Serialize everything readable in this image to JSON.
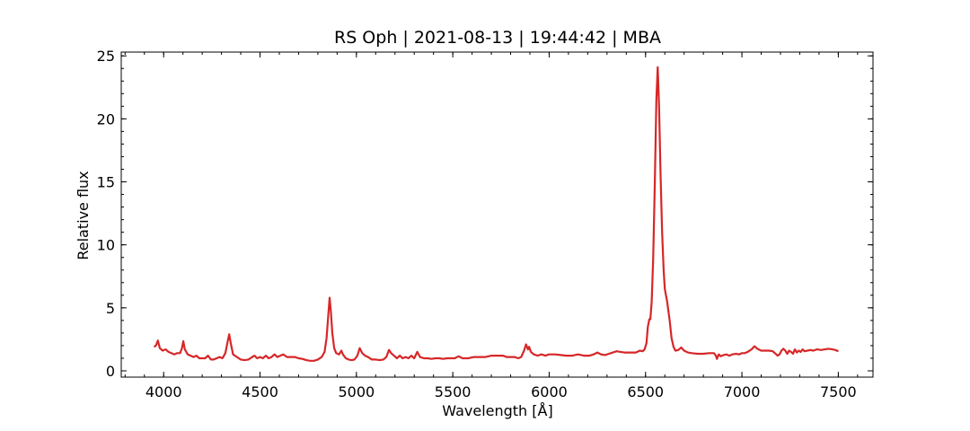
{
  "chart_data": {
    "type": "line",
    "title": "RS Oph | 2021-08-13 | 19:44:42 | MBA",
    "xlabel": "Wavelength [Å]",
    "ylabel": "Relative flux",
    "xlim": [
      3780,
      7680
    ],
    "ylim": [
      -0.5,
      25.3
    ],
    "xticks": [
      4000,
      4500,
      5000,
      5500,
      6000,
      6500,
      7000,
      7500
    ],
    "yticks": [
      0,
      5,
      10,
      15,
      20,
      25
    ],
    "x_minor_step": 100,
    "y_minor_step": 1,
    "grid": false,
    "legend": "none",
    "series": [
      {
        "color": "#d62728",
        "points": [
          [
            3950,
            1.9
          ],
          [
            3960,
            2.0
          ],
          [
            3970,
            2.4
          ],
          [
            3980,
            1.8
          ],
          [
            3995,
            1.6
          ],
          [
            4010,
            1.7
          ],
          [
            4025,
            1.5
          ],
          [
            4040,
            1.4
          ],
          [
            4055,
            1.3
          ],
          [
            4070,
            1.4
          ],
          [
            4085,
            1.4
          ],
          [
            4095,
            1.8
          ],
          [
            4102,
            2.35
          ],
          [
            4110,
            1.7
          ],
          [
            4125,
            1.3
          ],
          [
            4140,
            1.2
          ],
          [
            4155,
            1.1
          ],
          [
            4170,
            1.2
          ],
          [
            4185,
            1.0
          ],
          [
            4200,
            1.0
          ],
          [
            4215,
            1.0
          ],
          [
            4230,
            1.2
          ],
          [
            4245,
            0.9
          ],
          [
            4260,
            0.9
          ],
          [
            4275,
            1.0
          ],
          [
            4290,
            1.1
          ],
          [
            4305,
            1.0
          ],
          [
            4320,
            1.4
          ],
          [
            4333,
            2.4
          ],
          [
            4340,
            2.9
          ],
          [
            4348,
            2.2
          ],
          [
            4360,
            1.3
          ],
          [
            4380,
            1.1
          ],
          [
            4400,
            0.9
          ],
          [
            4420,
            0.85
          ],
          [
            4440,
            0.9
          ],
          [
            4460,
            1.1
          ],
          [
            4471,
            1.2
          ],
          [
            4485,
            1.0
          ],
          [
            4500,
            1.1
          ],
          [
            4515,
            1.0
          ],
          [
            4530,
            1.2
          ],
          [
            4545,
            1.0
          ],
          [
            4560,
            1.1
          ],
          [
            4575,
            1.3
          ],
          [
            4590,
            1.1
          ],
          [
            4605,
            1.2
          ],
          [
            4620,
            1.3
          ],
          [
            4640,
            1.1
          ],
          [
            4660,
            1.1
          ],
          [
            4680,
            1.1
          ],
          [
            4700,
            1.0
          ],
          [
            4720,
            0.95
          ],
          [
            4740,
            0.85
          ],
          [
            4760,
            0.8
          ],
          [
            4780,
            0.8
          ],
          [
            4800,
            0.9
          ],
          [
            4820,
            1.1
          ],
          [
            4835,
            1.5
          ],
          [
            4845,
            2.6
          ],
          [
            4855,
            4.6
          ],
          [
            4861,
            5.8
          ],
          [
            4867,
            4.8
          ],
          [
            4875,
            3.0
          ],
          [
            4885,
            1.8
          ],
          [
            4895,
            1.4
          ],
          [
            4910,
            1.3
          ],
          [
            4922,
            1.6
          ],
          [
            4930,
            1.3
          ],
          [
            4945,
            1.0
          ],
          [
            4960,
            0.9
          ],
          [
            4975,
            0.85
          ],
          [
            4990,
            0.9
          ],
          [
            5005,
            1.2
          ],
          [
            5017,
            1.8
          ],
          [
            5030,
            1.4
          ],
          [
            5045,
            1.2
          ],
          [
            5060,
            1.1
          ],
          [
            5080,
            0.9
          ],
          [
            5100,
            0.9
          ],
          [
            5120,
            0.85
          ],
          [
            5140,
            0.9
          ],
          [
            5155,
            1.1
          ],
          [
            5169,
            1.65
          ],
          [
            5180,
            1.4
          ],
          [
            5195,
            1.2
          ],
          [
            5210,
            1.0
          ],
          [
            5225,
            1.2
          ],
          [
            5240,
            1.0
          ],
          [
            5255,
            1.1
          ],
          [
            5270,
            1.0
          ],
          [
            5285,
            1.2
          ],
          [
            5300,
            1.0
          ],
          [
            5316,
            1.5
          ],
          [
            5330,
            1.1
          ],
          [
            5350,
            1.0
          ],
          [
            5370,
            1.0
          ],
          [
            5390,
            0.95
          ],
          [
            5410,
            1.0
          ],
          [
            5430,
            1.0
          ],
          [
            5450,
            0.95
          ],
          [
            5470,
            1.0
          ],
          [
            5490,
            1.0
          ],
          [
            5510,
            1.0
          ],
          [
            5530,
            1.15
          ],
          [
            5550,
            1.0
          ],
          [
            5580,
            1.0
          ],
          [
            5610,
            1.1
          ],
          [
            5640,
            1.1
          ],
          [
            5670,
            1.1
          ],
          [
            5700,
            1.2
          ],
          [
            5730,
            1.2
          ],
          [
            5760,
            1.2
          ],
          [
            5780,
            1.1
          ],
          [
            5800,
            1.1
          ],
          [
            5820,
            1.1
          ],
          [
            5840,
            1.0
          ],
          [
            5855,
            1.1
          ],
          [
            5870,
            1.6
          ],
          [
            5880,
            2.1
          ],
          [
            5890,
            1.7
          ],
          [
            5896,
            1.9
          ],
          [
            5905,
            1.5
          ],
          [
            5920,
            1.3
          ],
          [
            5940,
            1.2
          ],
          [
            5960,
            1.3
          ],
          [
            5980,
            1.2
          ],
          [
            6000,
            1.3
          ],
          [
            6030,
            1.3
          ],
          [
            6060,
            1.25
          ],
          [
            6090,
            1.2
          ],
          [
            6120,
            1.2
          ],
          [
            6150,
            1.3
          ],
          [
            6180,
            1.2
          ],
          [
            6210,
            1.2
          ],
          [
            6230,
            1.3
          ],
          [
            6250,
            1.45
          ],
          [
            6270,
            1.3
          ],
          [
            6290,
            1.25
          ],
          [
            6310,
            1.35
          ],
          [
            6330,
            1.45
          ],
          [
            6350,
            1.55
          ],
          [
            6370,
            1.5
          ],
          [
            6390,
            1.45
          ],
          [
            6410,
            1.45
          ],
          [
            6430,
            1.45
          ],
          [
            6450,
            1.45
          ],
          [
            6470,
            1.6
          ],
          [
            6485,
            1.55
          ],
          [
            6495,
            1.7
          ],
          [
            6505,
            2.2
          ],
          [
            6512,
            3.5
          ],
          [
            6520,
            4.1
          ],
          [
            6525,
            4.1
          ],
          [
            6532,
            5.5
          ],
          [
            6540,
            9.0
          ],
          [
            6548,
            15.0
          ],
          [
            6556,
            21.5
          ],
          [
            6563,
            24.1
          ],
          [
            6570,
            21.0
          ],
          [
            6578,
            15.5
          ],
          [
            6586,
            11.0
          ],
          [
            6594,
            8.0
          ],
          [
            6600,
            6.5
          ],
          [
            6612,
            5.5
          ],
          [
            6625,
            4.0
          ],
          [
            6635,
            2.6
          ],
          [
            6645,
            1.9
          ],
          [
            6655,
            1.6
          ],
          [
            6670,
            1.65
          ],
          [
            6685,
            1.85
          ],
          [
            6700,
            1.6
          ],
          [
            6720,
            1.45
          ],
          [
            6740,
            1.4
          ],
          [
            6770,
            1.35
          ],
          [
            6800,
            1.35
          ],
          [
            6830,
            1.4
          ],
          [
            6855,
            1.4
          ],
          [
            6865,
            1.2
          ],
          [
            6870,
            0.95
          ],
          [
            6880,
            1.3
          ],
          [
            6890,
            1.15
          ],
          [
            6905,
            1.25
          ],
          [
            6920,
            1.3
          ],
          [
            6935,
            1.2
          ],
          [
            6950,
            1.3
          ],
          [
            6970,
            1.35
          ],
          [
            6985,
            1.3
          ],
          [
            7000,
            1.4
          ],
          [
            7015,
            1.4
          ],
          [
            7030,
            1.5
          ],
          [
            7050,
            1.7
          ],
          [
            7065,
            1.95
          ],
          [
            7080,
            1.75
          ],
          [
            7100,
            1.6
          ],
          [
            7120,
            1.6
          ],
          [
            7140,
            1.6
          ],
          [
            7160,
            1.55
          ],
          [
            7175,
            1.35
          ],
          [
            7185,
            1.2
          ],
          [
            7195,
            1.3
          ],
          [
            7205,
            1.6
          ],
          [
            7215,
            1.75
          ],
          [
            7225,
            1.6
          ],
          [
            7235,
            1.35
          ],
          [
            7245,
            1.6
          ],
          [
            7255,
            1.5
          ],
          [
            7265,
            1.35
          ],
          [
            7275,
            1.7
          ],
          [
            7285,
            1.45
          ],
          [
            7295,
            1.6
          ],
          [
            7305,
            1.5
          ],
          [
            7315,
            1.7
          ],
          [
            7325,
            1.55
          ],
          [
            7340,
            1.6
          ],
          [
            7355,
            1.65
          ],
          [
            7370,
            1.6
          ],
          [
            7390,
            1.7
          ],
          [
            7410,
            1.65
          ],
          [
            7430,
            1.7
          ],
          [
            7450,
            1.75
          ],
          [
            7470,
            1.7
          ],
          [
            7485,
            1.65
          ],
          [
            7500,
            1.55
          ]
        ]
      }
    ]
  }
}
